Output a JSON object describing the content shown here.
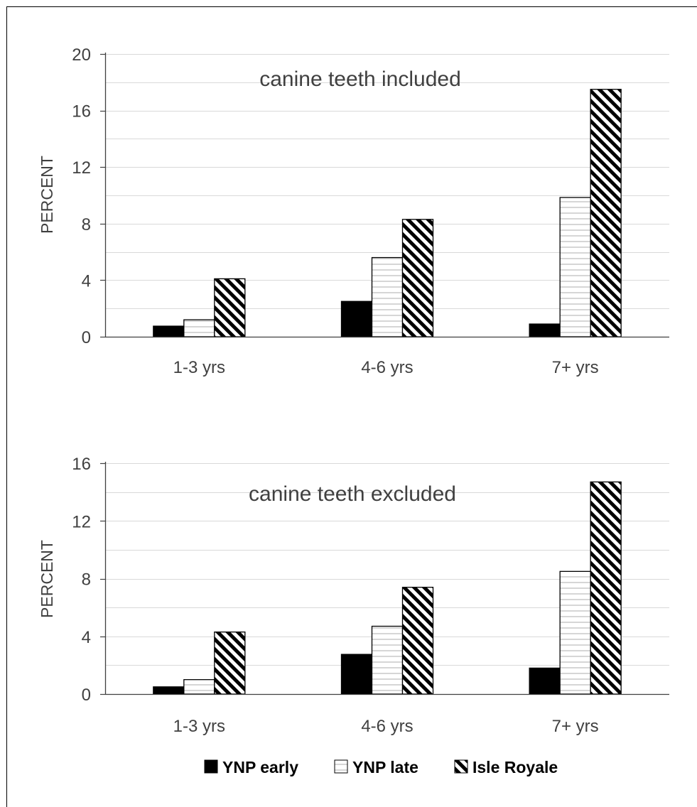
{
  "chart_data": [
    {
      "type": "bar",
      "annotation": "canine teeth included",
      "ylabel": "PERCENT",
      "categories": [
        "1-3 yrs",
        "4-6 yrs",
        "7+ yrs"
      ],
      "ylim": [
        0,
        20
      ],
      "yticks": [
        "0",
        "4",
        "8",
        "12",
        "16",
        "20"
      ],
      "series": [
        {
          "name": "YNP early",
          "values": [
            0.75,
            2.5,
            0.9
          ]
        },
        {
          "name": "YNP late",
          "values": [
            1.2,
            5.6,
            9.85
          ]
        },
        {
          "name": "Isle Royale",
          "values": [
            4.1,
            8.3,
            17.5
          ]
        }
      ],
      "grid": true
    },
    {
      "type": "bar",
      "annotation": "canine teeth excluded",
      "ylabel": "PERCENT",
      "categories": [
        "1-3 yrs",
        "4-6 yrs",
        "7+ yrs"
      ],
      "ylim": [
        0,
        16
      ],
      "yticks": [
        "0",
        "4",
        "8",
        "12",
        "16"
      ],
      "series": [
        {
          "name": "YNP early",
          "values": [
            0.5,
            2.75,
            1.8
          ]
        },
        {
          "name": "YNP late",
          "values": [
            1.0,
            4.7,
            8.5
          ]
        },
        {
          "name": "Isle Royale",
          "values": [
            4.3,
            7.4,
            14.7
          ]
        }
      ],
      "grid": true
    }
  ],
  "legend": {
    "placement": "bottom",
    "items": [
      {
        "label": "YNP early",
        "fill": "solid-black"
      },
      {
        "label": "YNP late",
        "fill": "horizontal-lines"
      },
      {
        "label": "Isle Royale",
        "fill": "diagonal-hatch"
      }
    ]
  },
  "colors": {
    "bar_stroke": "#000000",
    "solid": "#000000",
    "hatch_line": "#000000",
    "hline": "#c8c8c8",
    "grid": "#d9d9d9",
    "axis": "#404040",
    "text": "#404040",
    "frame": "#000000"
  }
}
